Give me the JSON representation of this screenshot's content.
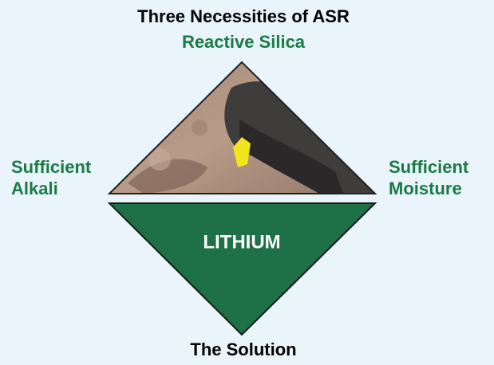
{
  "header": {
    "title": "Three Necessities of ASR"
  },
  "nodes": [
    {
      "label": "Reactive Silica"
    },
    {
      "label": [
        "Sufficient",
        "Alkali"
      ]
    },
    {
      "label": [
        "Sufficient",
        "Moisture"
      ]
    },
    {
      "label": "LITHIUM"
    },
    {
      "label": "The Solution"
    }
  ]
}
